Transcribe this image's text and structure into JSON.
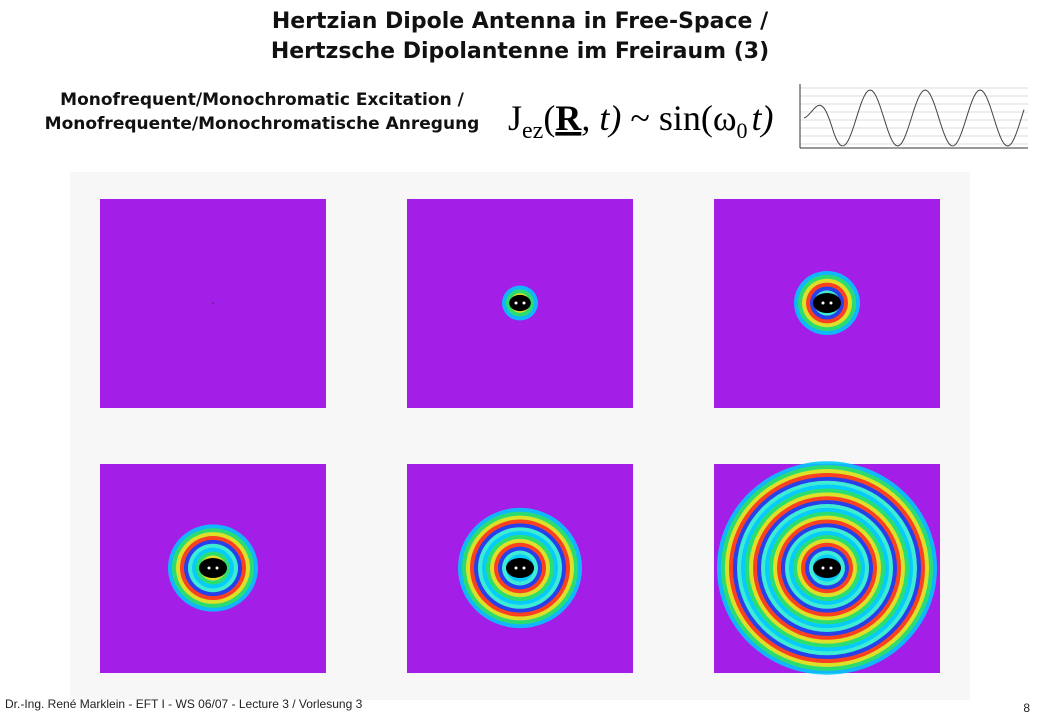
{
  "header": {
    "title": [
      "Hertzian Dipole Antenna in Free-Space /",
      "Hertzsche Dipolantenne im Freiraum (3)"
    ]
  },
  "subtitle": [
    "Monofrequent/Monochromatic Excitation /",
    "Monofrequente/Monochromatische Anregung"
  ],
  "formula": [
    "J",
    "ez",
    "(",
    "R",
    ", t)",
    " ~ ",
    "sin(ω",
    "0",
    "t)"
  ],
  "footer": {
    "text": "Dr.-Ing. René Marklein - EFT I - WS 06/07 - Lecture 3 / Vorlesung 3",
    "page": "8"
  }
}
